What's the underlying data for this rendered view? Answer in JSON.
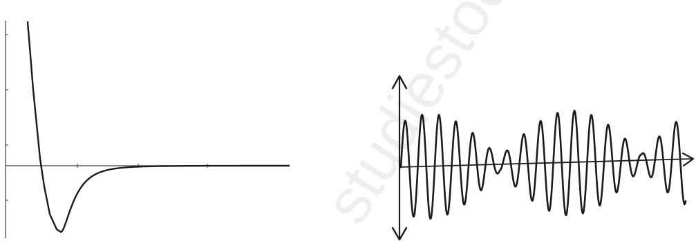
{
  "watermark": {
    "text": "studiestoday guide india.com"
  },
  "colors": {
    "ink": "#1a1a1a",
    "axis": "#3a3a3a",
    "watermark": "#eeeeee"
  },
  "left_plot": {
    "kind": "potential-energy-curve",
    "axes": {
      "vertical_axis": true,
      "horizontal_axis": true,
      "arrows": false
    }
  },
  "right_plot": {
    "kind": "beat-waveform",
    "axes": {
      "vertical_arrows": "both",
      "horizontal_arrow": "right"
    }
  }
}
